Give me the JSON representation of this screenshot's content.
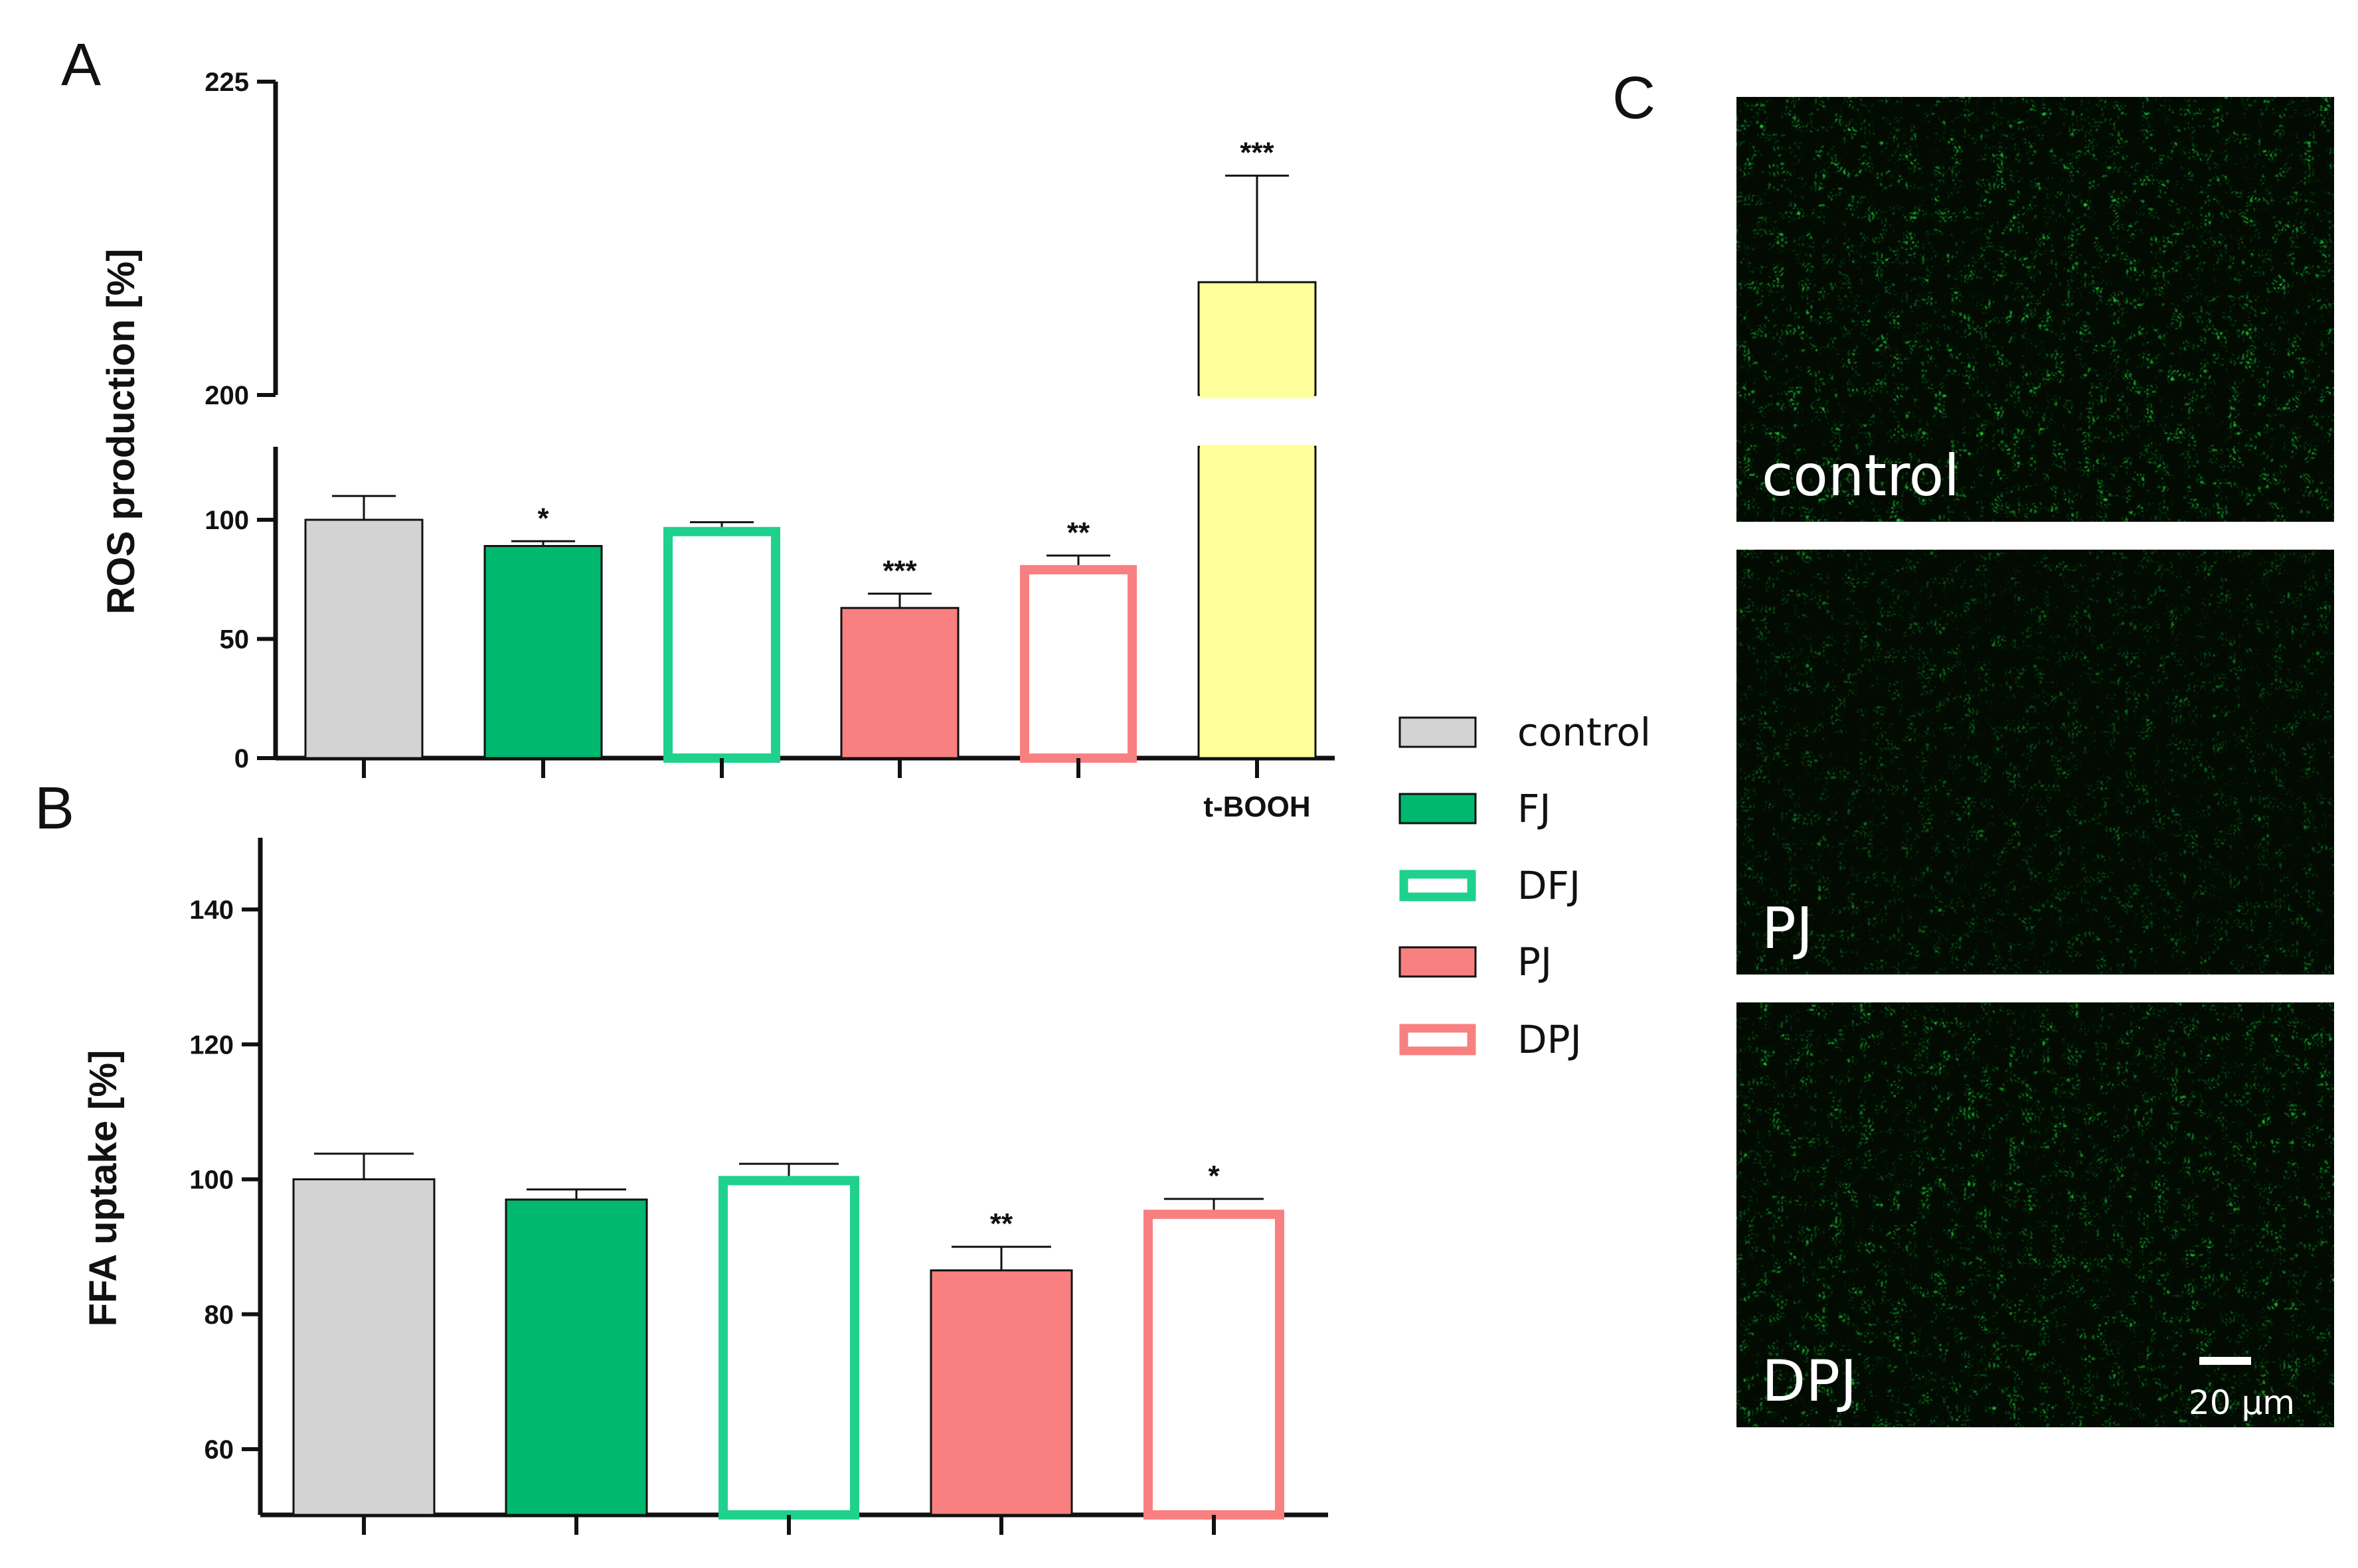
{
  "panels": {
    "A": "A",
    "B": "B",
    "C": "C"
  },
  "colors": {
    "control": "#d3d3d3",
    "fj": "#00b86e",
    "dfj": "#1fd18c",
    "pj": "#f88080",
    "dpj": "#f88080",
    "tbooh": "#ffff9c",
    "frame": "#111111"
  },
  "legend": [
    {
      "label": "control",
      "style": "filled",
      "color": "#d3d3d3"
    },
    {
      "label": "FJ",
      "style": "filled",
      "color": "#00b86e"
    },
    {
      "label": "DFJ",
      "style": "outline",
      "color": "#1fd18c"
    },
    {
      "label": "PJ",
      "style": "filled",
      "color": "#f88080"
    },
    {
      "label": "DPJ",
      "style": "outline",
      "color": "#f88080"
    }
  ],
  "chart_data": [
    {
      "type": "bar",
      "panel": "A",
      "title": "",
      "xlabel": "",
      "ylabel": "ROS production [%]",
      "broken_axis": {
        "lower": [
          0,
          120
        ],
        "upper": [
          200,
          225
        ]
      },
      "yticks": [
        0,
        50,
        100,
        200,
        225
      ],
      "categories": [
        "control",
        "FJ",
        "DFJ",
        "PJ",
        "DPJ",
        "t-BOOH"
      ],
      "category_labels": [
        "",
        "",
        "",
        "",
        "",
        "t-BOOH"
      ],
      "values": [
        100,
        89,
        97,
        63,
        81,
        209
      ],
      "errors": [
        10,
        2,
        2,
        6,
        4,
        8.5
      ],
      "significance": [
        "",
        "*",
        "",
        "***",
        "**",
        "***"
      ],
      "styles": [
        "filled",
        "filled",
        "outline",
        "filled",
        "outline",
        "filled"
      ],
      "colors": [
        "#d3d3d3",
        "#00b86e",
        "#1fd18c",
        "#f88080",
        "#f88080",
        "#ffff9c"
      ]
    },
    {
      "type": "bar",
      "panel": "B",
      "title": "",
      "xlabel": "",
      "ylabel": "FFA uptake [%]",
      "ylim": [
        50,
        150
      ],
      "yticks": [
        60,
        80,
        100,
        120,
        140
      ],
      "categories": [
        "control",
        "FJ",
        "DFJ",
        "PJ",
        "DPJ"
      ],
      "values": [
        100,
        97,
        100.5,
        86.5,
        95.5
      ],
      "errors": [
        3.8,
        1.5,
        1.8,
        3.5,
        1.6
      ],
      "significance": [
        "",
        "",
        "",
        "**",
        "*"
      ],
      "styles": [
        "filled",
        "filled",
        "outline",
        "filled",
        "outline"
      ],
      "colors": [
        "#d3d3d3",
        "#00b86e",
        "#1fd18c",
        "#f88080",
        "#f88080"
      ]
    }
  ],
  "micrographs": [
    {
      "label": "control",
      "brightness": 0.9
    },
    {
      "label": "PJ",
      "brightness": 0.55
    },
    {
      "label": "DPJ",
      "brightness": 0.8
    }
  ],
  "scale_bar": "20 µm"
}
